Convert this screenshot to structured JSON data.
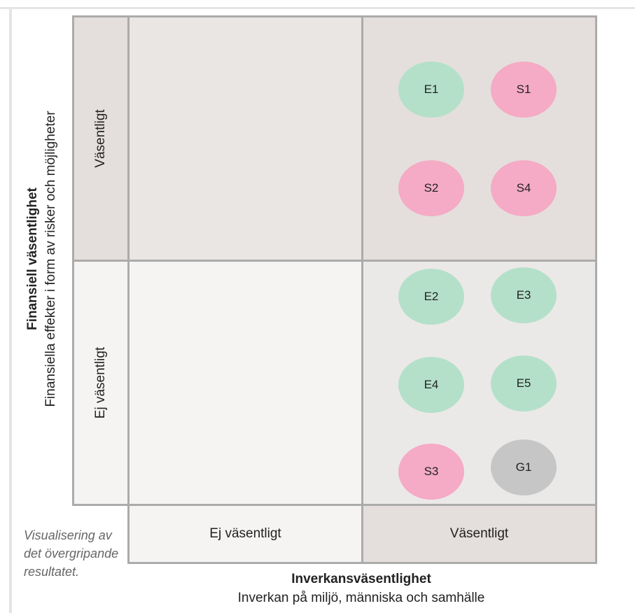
{
  "y_axis": {
    "title": "Finansiell väsentlighet",
    "subtitle": "Finansiella effekter i form av risker och möjligheter"
  },
  "x_axis": {
    "title": "Inverkansväsentlighet",
    "subtitle": "Inverkan på miljö, människa och samhälle"
  },
  "row_labels": {
    "top": "Väsentligt",
    "bottom": "Ej väsentligt"
  },
  "column_labels": {
    "left": "Ej väsentligt",
    "right": "Väsentligt"
  },
  "caption": "Visualisering av det övergripande resultatet.",
  "colors": {
    "environment": "#b4e0c9",
    "social": "#f5aac5",
    "governance": "#c6c6c6",
    "shaded_cell": "#e4dfdc",
    "light_cell": "#f5f4f2",
    "grid_border": "#ababab"
  },
  "matrix": {
    "top_right": [
      "E1",
      "S1",
      "S2",
      "S4"
    ],
    "bottom_right": [
      "E2",
      "E3",
      "E4",
      "E5",
      "S3",
      "G1"
    ]
  }
}
